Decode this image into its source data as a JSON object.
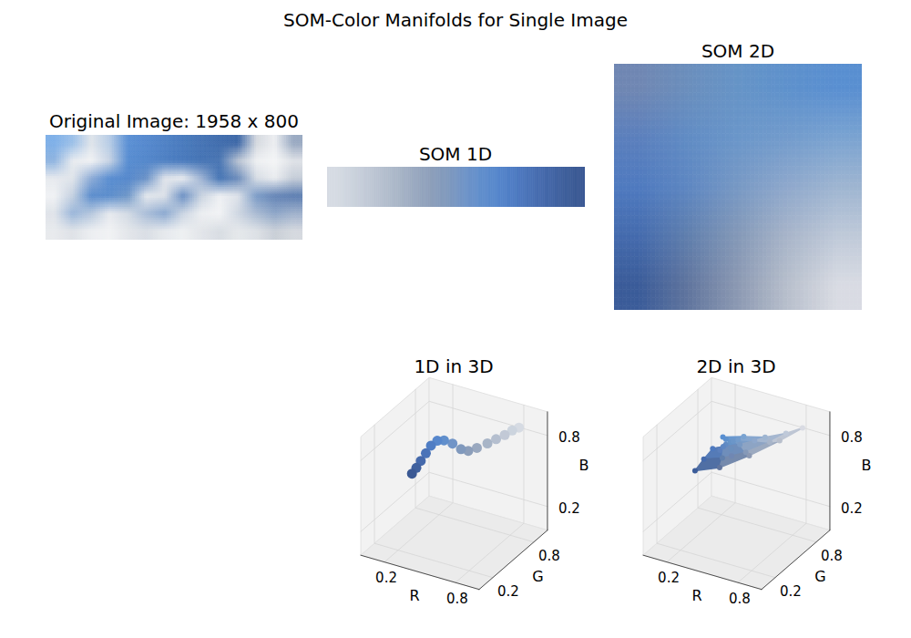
{
  "title": "SOM-Color Manifolds for Single Image",
  "chart_data": [
    {
      "type": "image",
      "title": "Original Image: 1958 x 800",
      "width": 1958,
      "height": 800,
      "tick_labels": false,
      "pixels": [
        [
          "#7fb0e8",
          "#9cc0e8",
          "#dfe4ea",
          "#b8cde6",
          "#5b90d4",
          "#5689ce",
          "#5082c6",
          "#4a7bbd",
          "#4674b5",
          "#416dad",
          "#3f69a8",
          "#d5d9df",
          "#eceef1",
          "#9aaac2"
        ],
        [
          "#8fb4e0",
          "#e8ebef",
          "#f1f2f4",
          "#c8d4e4",
          "#588dd1",
          "#5387cb",
          "#4e80c3",
          "#497abd",
          "#4574b5",
          "#4a76b3",
          "#b9c3d2",
          "#eef0f2",
          "#f4f5f6",
          "#dfe2e7"
        ],
        [
          "#e6e9ee",
          "#dfe4ea",
          "#8eacd6",
          "#5a8ed1",
          "#5588cc",
          "#6b92c7",
          "#dfe3ea",
          "#e8ebef",
          "#9fb4d4",
          "#4675b5",
          "#6c8cbb",
          "#d6dce4",
          "#eaecef",
          "#c5cdd8"
        ],
        [
          "#f0f2f4",
          "#c4d0e0",
          "#5b8dcd",
          "#5d8ecc",
          "#6f97c8",
          "#e4e8ed",
          "#dce1e8",
          "#6b90c4",
          "#c9d3e0",
          "#eef0f3",
          "#dde2e9",
          "#7c9cc7",
          "#6585b6",
          "#5e7fb2"
        ],
        [
          "#dfe3e9",
          "#9ab6da",
          "#b5c7dd",
          "#e6e9ee",
          "#d2dae4",
          "#a9bdd8",
          "#8aa8d0",
          "#cbd5e2",
          "#eceef1",
          "#f2f3f5",
          "#cfd7e2",
          "#a9bad2",
          "#8ea6c8",
          "#9fb1cc"
        ],
        [
          "#e8eaed",
          "#dee2e7",
          "#eceef1",
          "#f1f2f4",
          "#e3e6ea",
          "#d9dee5",
          "#e6e9ed",
          "#eef0f2",
          "#e2e5e9",
          "#d8dde3",
          "#e5e8eb",
          "#dde1e6",
          "#c9cfd7",
          "#d5d9df"
        ]
      ]
    },
    {
      "type": "image",
      "title": "SOM 1D",
      "tick_labels": false,
      "nodes": [
        [
          0.84,
          0.86,
          0.89
        ],
        [
          0.8,
          0.83,
          0.87
        ],
        [
          0.76,
          0.79,
          0.84
        ],
        [
          0.71,
          0.75,
          0.81
        ],
        [
          0.66,
          0.71,
          0.78
        ],
        [
          0.6,
          0.66,
          0.75
        ],
        [
          0.55,
          0.62,
          0.73
        ],
        [
          0.5,
          0.6,
          0.74
        ],
        [
          0.44,
          0.58,
          0.78
        ],
        [
          0.38,
          0.56,
          0.8
        ],
        [
          0.34,
          0.53,
          0.8
        ],
        [
          0.31,
          0.49,
          0.77
        ],
        [
          0.29,
          0.45,
          0.72
        ],
        [
          0.27,
          0.41,
          0.67
        ],
        [
          0.25,
          0.38,
          0.62
        ],
        [
          0.23,
          0.35,
          0.58
        ]
      ]
    },
    {
      "type": "image",
      "title": "SOM 2D",
      "tick_labels": false,
      "nodes": [
        [
          [
            0.44,
            0.53,
            0.7
          ],
          [
            0.42,
            0.56,
            0.74
          ],
          [
            0.4,
            0.58,
            0.78
          ],
          [
            0.37,
            0.57,
            0.8
          ],
          [
            0.35,
            0.56,
            0.82
          ]
        ],
        [
          [
            0.36,
            0.5,
            0.74
          ],
          [
            0.38,
            0.55,
            0.77
          ],
          [
            0.42,
            0.59,
            0.79
          ],
          [
            0.45,
            0.61,
            0.8
          ],
          [
            0.48,
            0.64,
            0.82
          ]
        ],
        [
          [
            0.31,
            0.48,
            0.75
          ],
          [
            0.37,
            0.53,
            0.76
          ],
          [
            0.47,
            0.6,
            0.77
          ],
          [
            0.56,
            0.66,
            0.8
          ],
          [
            0.62,
            0.71,
            0.82
          ]
        ],
        [
          [
            0.27,
            0.42,
            0.68
          ],
          [
            0.38,
            0.5,
            0.68
          ],
          [
            0.52,
            0.6,
            0.72
          ],
          [
            0.66,
            0.71,
            0.79
          ],
          [
            0.75,
            0.79,
            0.85
          ]
        ],
        [
          [
            0.23,
            0.36,
            0.6
          ],
          [
            0.38,
            0.46,
            0.62
          ],
          [
            0.55,
            0.6,
            0.7
          ],
          [
            0.72,
            0.75,
            0.8
          ],
          [
            0.85,
            0.86,
            0.89
          ]
        ]
      ]
    },
    {
      "type": "scatter3d",
      "title": "1D in 3D",
      "x_label": "R",
      "y_label": "G",
      "z_label": "B",
      "xlim": [
        0,
        1
      ],
      "ylim": [
        0,
        1
      ],
      "zlim": [
        0,
        1
      ],
      "xticks": [
        0.2,
        0.8
      ],
      "yticks": [
        0.2,
        0.8
      ],
      "zticks": [
        0.2,
        0.8
      ],
      "grid": true,
      "points": [
        [
          0.84,
          0.86,
          0.89
        ],
        [
          0.8,
          0.83,
          0.87
        ],
        [
          0.76,
          0.79,
          0.84
        ],
        [
          0.71,
          0.75,
          0.81
        ],
        [
          0.66,
          0.71,
          0.78
        ],
        [
          0.6,
          0.66,
          0.75
        ],
        [
          0.55,
          0.62,
          0.73
        ],
        [
          0.5,
          0.6,
          0.74
        ],
        [
          0.44,
          0.58,
          0.78
        ],
        [
          0.38,
          0.56,
          0.8
        ],
        [
          0.34,
          0.53,
          0.8
        ],
        [
          0.31,
          0.49,
          0.77
        ],
        [
          0.29,
          0.45,
          0.72
        ],
        [
          0.27,
          0.41,
          0.67
        ],
        [
          0.25,
          0.38,
          0.62
        ],
        [
          0.23,
          0.35,
          0.58
        ]
      ]
    },
    {
      "type": "scatter3d",
      "title": "2D in 3D",
      "x_label": "R",
      "y_label": "G",
      "z_label": "B",
      "xlim": [
        0,
        1
      ],
      "ylim": [
        0,
        1
      ],
      "zlim": [
        0,
        1
      ],
      "xticks": [
        0.2,
        0.8
      ],
      "yticks": [
        0.2,
        0.8
      ],
      "zticks": [
        0.2,
        0.8
      ],
      "grid": true,
      "points": [
        [
          [
            0.44,
            0.53,
            0.7
          ],
          [
            0.42,
            0.56,
            0.74
          ],
          [
            0.4,
            0.58,
            0.78
          ],
          [
            0.37,
            0.57,
            0.8
          ],
          [
            0.35,
            0.56,
            0.82
          ]
        ],
        [
          [
            0.36,
            0.5,
            0.74
          ],
          [
            0.38,
            0.55,
            0.77
          ],
          [
            0.42,
            0.59,
            0.79
          ],
          [
            0.45,
            0.61,
            0.8
          ],
          [
            0.48,
            0.64,
            0.82
          ]
        ],
        [
          [
            0.31,
            0.48,
            0.75
          ],
          [
            0.37,
            0.53,
            0.76
          ],
          [
            0.47,
            0.6,
            0.77
          ],
          [
            0.56,
            0.66,
            0.8
          ],
          [
            0.62,
            0.71,
            0.82
          ]
        ],
        [
          [
            0.27,
            0.42,
            0.68
          ],
          [
            0.38,
            0.5,
            0.68
          ],
          [
            0.52,
            0.6,
            0.72
          ],
          [
            0.66,
            0.71,
            0.79
          ],
          [
            0.75,
            0.79,
            0.85
          ]
        ],
        [
          [
            0.23,
            0.36,
            0.6
          ],
          [
            0.38,
            0.46,
            0.62
          ],
          [
            0.55,
            0.6,
            0.7
          ],
          [
            0.72,
            0.75,
            0.8
          ],
          [
            0.85,
            0.86,
            0.89
          ]
        ]
      ]
    }
  ]
}
